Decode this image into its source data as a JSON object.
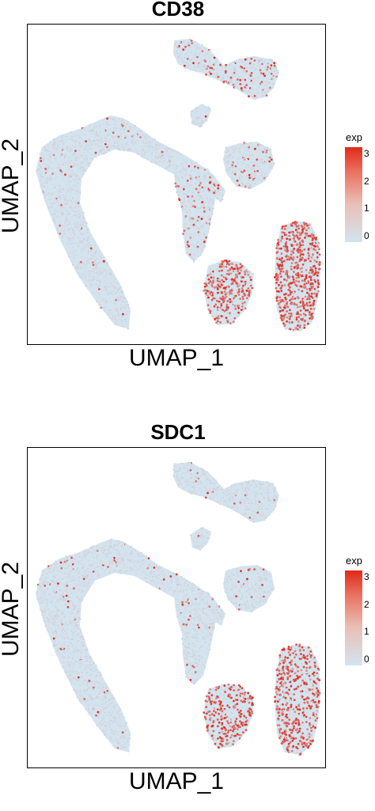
{
  "chart_data": [
    {
      "type": "scatter",
      "title": "CD38",
      "xlabel": "UMAP_1",
      "ylabel": "UMAP_2",
      "legend": {
        "title": "exp",
        "ticks": [
          "3",
          "2",
          "1",
          "0"
        ],
        "position": "right"
      },
      "grid": false,
      "color_low": "#d3e4ef",
      "color_high": "#e02a1a",
      "clusters": [
        {
          "name": "top-right",
          "expression": 0.15
        },
        {
          "name": "left-arc",
          "expression": 0.03
        },
        {
          "name": "middle-arm",
          "expression": 0.12
        },
        {
          "name": "center",
          "expression": 0.1
        },
        {
          "name": "bottom-mid",
          "expression": 0.55
        },
        {
          "name": "bottom-right",
          "expression": 0.7
        }
      ]
    },
    {
      "type": "scatter",
      "title": "SDC1",
      "xlabel": "UMAP_1",
      "ylabel": "UMAP_2",
      "legend": {
        "title": "exp",
        "ticks": [
          "3",
          "2",
          "1",
          "0"
        ],
        "position": "right"
      },
      "grid": false,
      "color_low": "#d3e4ef",
      "color_high": "#e02a1a",
      "clusters": [
        {
          "name": "top-right",
          "expression": 0.03
        },
        {
          "name": "left-arc",
          "expression": 0.03
        },
        {
          "name": "middle-arm",
          "expression": 0.04
        },
        {
          "name": "center",
          "expression": 0.04
        },
        {
          "name": "bottom-mid",
          "expression": 0.5
        },
        {
          "name": "bottom-right",
          "expression": 0.55
        }
      ]
    }
  ]
}
